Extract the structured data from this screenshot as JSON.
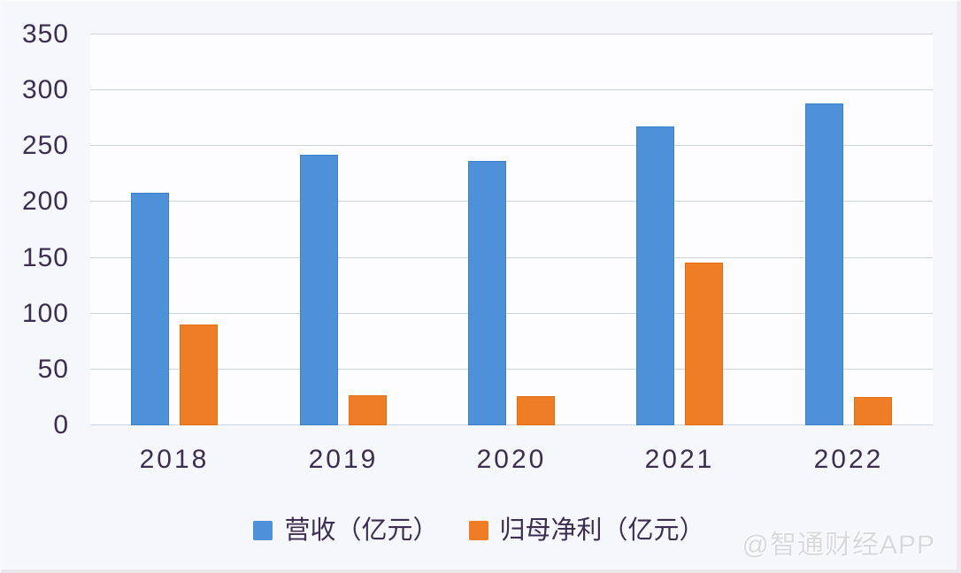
{
  "chart_data": {
    "type": "bar",
    "title": "",
    "categories": [
      "2018",
      "2019",
      "2020",
      "2021",
      "2022"
    ],
    "series": [
      {
        "key": "revenue",
        "name": "营收（亿元）",
        "color": "#4E91D9",
        "edge": "#3E80C6",
        "values": [
          208,
          242,
          237,
          268,
          288
        ]
      },
      {
        "key": "net-profit",
        "name": "归母净利（亿元）",
        "color": "#EE7D26",
        "edge": "#DD6E12",
        "values": [
          90,
          27,
          26,
          146,
          25
        ]
      }
    ],
    "xlabel": "",
    "ylabel": "",
    "ylim": [
      0,
      350
    ],
    "y_ticks": [
      0,
      50,
      100,
      150,
      200,
      250,
      300,
      350
    ],
    "grid": true,
    "legend_position": "bottom"
  },
  "watermark": {
    "text": "@智通财经APP"
  },
  "theme": {
    "background": "#f6f7fb",
    "plot_background": "#fdfdff",
    "gridline_color": "#ccd3e0",
    "text_color": "#3C2E50"
  }
}
